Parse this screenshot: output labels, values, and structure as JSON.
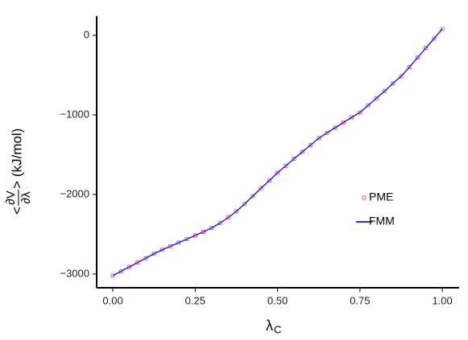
{
  "chart_data": {
    "type": "line",
    "xlabel": {
      "text": "λ",
      "subscript": "C"
    },
    "ylabel": {
      "open": "<",
      "numerator": "∂V",
      "denominator": "∂λ",
      "close": ">",
      "unit": "(kJ/mol)"
    },
    "x": [
      0,
      0.025,
      0.05,
      0.075,
      0.1,
      0.125,
      0.15,
      0.175,
      0.2,
      0.225,
      0.25,
      0.275,
      0.3,
      0.325,
      0.35,
      0.375,
      0.4,
      0.425,
      0.45,
      0.475,
      0.5,
      0.525,
      0.55,
      0.575,
      0.6,
      0.625,
      0.65,
      0.675,
      0.7,
      0.725,
      0.75,
      0.775,
      0.8,
      0.825,
      0.85,
      0.875,
      0.9,
      0.925,
      0.95,
      0.975,
      1
    ],
    "series": [
      {
        "name": "PME",
        "marker": "square",
        "color": "#e0408a",
        "values": [
          -3020,
          -2965,
          -2910,
          -2855,
          -2800,
          -2745,
          -2695,
          -2650,
          -2605,
          -2560,
          -2515,
          -2470,
          -2420,
          -2360,
          -2290,
          -2212,
          -2120,
          -2020,
          -1920,
          -1825,
          -1727,
          -1640,
          -1550,
          -1465,
          -1380,
          -1293,
          -1225,
          -1160,
          -1095,
          -1030,
          -970,
          -880,
          -790,
          -700,
          -605,
          -515,
          -400,
          -280,
          -160,
          -40,
          80
        ]
      },
      {
        "name": "FMM",
        "marker": "line",
        "color": "#2b2bd0",
        "values": [
          -3020,
          -2965,
          -2910,
          -2855,
          -2800,
          -2745,
          -2695,
          -2650,
          -2605,
          -2560,
          -2515,
          -2470,
          -2420,
          -2360,
          -2290,
          -2212,
          -2120,
          -2020,
          -1920,
          -1825,
          -1727,
          -1640,
          -1550,
          -1465,
          -1380,
          -1293,
          -1225,
          -1160,
          -1095,
          -1030,
          -970,
          -880,
          -790,
          -700,
          -605,
          -515,
          -400,
          -280,
          -160,
          -40,
          80
        ]
      }
    ],
    "xlim": [
      -0.049,
      1.051
    ],
    "ylim": [
      -3172,
      242
    ],
    "xticks": [
      {
        "value": 0,
        "label": "0.00"
      },
      0.25,
      {
        "value": 0.5,
        "label": "0.50"
      },
      0.75,
      {
        "value": 1,
        "label": "1.00"
      }
    ],
    "yticks": [
      {
        "value": -3000,
        "label": "−3000"
      },
      {
        "value": -2000,
        "label": "−2000"
      },
      {
        "value": -1000,
        "label": "−1000"
      },
      0
    ],
    "grid": false,
    "legend": "right"
  }
}
